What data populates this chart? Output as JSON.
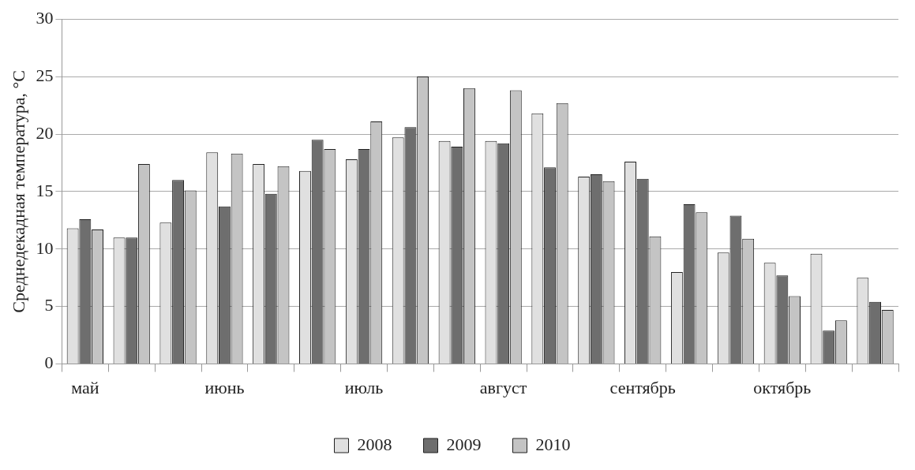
{
  "chart_data": {
    "type": "bar",
    "ylabel": "Среднедекадная температура, °C",
    "categories": [
      "май",
      null,
      null,
      "июнь",
      null,
      null,
      "июль",
      null,
      null,
      "август",
      null,
      null,
      "сентябрь",
      null,
      null,
      "октябрь",
      null,
      null
    ],
    "series": [
      {
        "name": "2008",
        "color": "#e0e0e0",
        "values": [
          11.8,
          11.0,
          12.3,
          18.4,
          17.4,
          16.8,
          17.8,
          19.7,
          19.4,
          19.4,
          21.8,
          16.3,
          17.6,
          8.0,
          9.7,
          8.8,
          9.6,
          7.5
        ]
      },
      {
        "name": "2009",
        "color": "#6e6e6e",
        "values": [
          12.6,
          11.0,
          16.0,
          13.7,
          14.8,
          19.5,
          18.7,
          20.6,
          18.9,
          19.2,
          17.1,
          16.5,
          16.1,
          13.9,
          12.9,
          7.7,
          2.9,
          5.4
        ]
      },
      {
        "name": "2010",
        "color": "#c4c4c4",
        "values": [
          11.7,
          17.4,
          15.1,
          18.3,
          17.2,
          18.7,
          21.1,
          25.0,
          24.0,
          23.8,
          22.7,
          15.9,
          11.1,
          13.2,
          10.9,
          5.9,
          3.8,
          4.7
        ]
      }
    ],
    "ylim": [
      0,
      30
    ],
    "yticks": [
      0,
      5,
      10,
      15,
      20,
      25,
      30
    ],
    "grid": "y",
    "legend": "bottom"
  }
}
